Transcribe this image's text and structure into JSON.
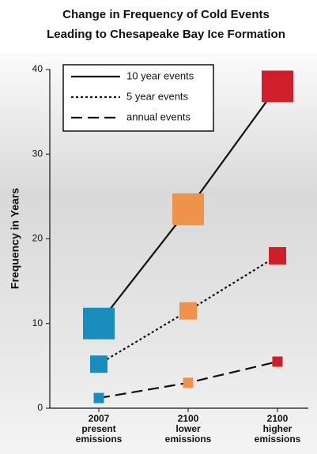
{
  "chart_data": {
    "type": "line",
    "title": [
      "Change in Frequency of Cold Events",
      "Leading to Chesapeake Bay Ice Formation"
    ],
    "y_label": "Frequency in Years",
    "categories": [
      [
        "2007",
        "present",
        "emissions"
      ],
      [
        "2100",
        "lower",
        "emissions"
      ],
      [
        "2100",
        "higher",
        "emissions"
      ]
    ],
    "point_colors": [
      "#1a8dbf",
      "#f0934a",
      "#cf1f2b"
    ],
    "series": [
      {
        "name": "10 year events",
        "color": "#111111",
        "line_style": "solid",
        "values": [
          10,
          23.5,
          38
        ]
      },
      {
        "name": "5 year events",
        "color": "#111111",
        "line_style": "dotted",
        "values": [
          5.2,
          11.5,
          18
        ]
      },
      {
        "name": "annual events",
        "color": "#111111",
        "line_style": "dashed",
        "values": [
          1.2,
          3,
          5.5
        ]
      }
    ],
    "ylim": [
      0,
      40
    ],
    "yticks": [
      0,
      10,
      20,
      30,
      40
    ]
  }
}
